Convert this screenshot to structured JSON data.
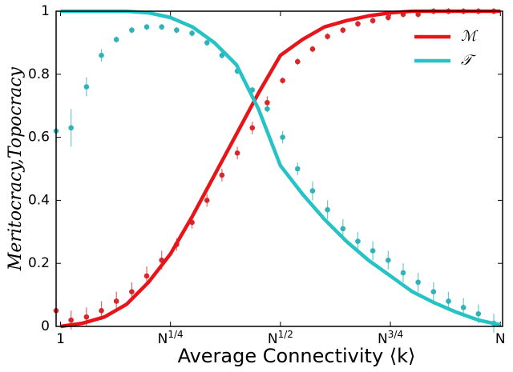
{
  "chart_data": {
    "type": "line",
    "xlabel": "Average Connectivity ⟨k⟩",
    "ylabel": "Meritocracy,Topocracy",
    "xlim": [
      -0.01,
      1.005
    ],
    "ylim": [
      0,
      1
    ],
    "xticks": [
      {
        "value": 0,
        "label": "1"
      },
      {
        "value": 0.25,
        "label": "N",
        "sup": "1/4"
      },
      {
        "value": 0.5,
        "label": "N",
        "sup": "1/2"
      },
      {
        "value": 0.75,
        "label": "N",
        "sup": "3/4"
      },
      {
        "value": 1,
        "label": "N"
      }
    ],
    "yticks": [
      0,
      0.2,
      0.4,
      0.6,
      0.8,
      1
    ],
    "legend": "upper right",
    "line_x": [
      0,
      0.05,
      0.1,
      0.15,
      0.2,
      0.25,
      0.3,
      0.35,
      0.4,
      0.45,
      0.5,
      0.55,
      0.6,
      0.65,
      0.7,
      0.75,
      0.8,
      0.85,
      0.9,
      0.95,
      1
    ],
    "series": [
      {
        "name": "ℳ",
        "color": "#e8141a",
        "values": [
          0,
          0.01,
          0.03,
          0.07,
          0.14,
          0.23,
          0.35,
          0.48,
          0.61,
          0.74,
          0.86,
          0.91,
          0.95,
          0.97,
          0.985,
          0.995,
          1,
          1,
          1,
          1,
          1
        ]
      },
      {
        "name": "𝒯",
        "color": "#26c3c6",
        "values": [
          1,
          1,
          1,
          1,
          0.995,
          0.98,
          0.95,
          0.9,
          0.83,
          0.69,
          0.51,
          0.42,
          0.34,
          0.27,
          0.21,
          0.16,
          0.11,
          0.075,
          0.045,
          0.02,
          0.005
        ]
      }
    ],
    "points_x": [
      -0.01,
      0.024,
      0.059,
      0.093,
      0.127,
      0.162,
      0.196,
      0.23,
      0.264,
      0.299,
      0.333,
      0.367,
      0.402,
      0.436,
      0.47,
      0.505,
      0.539,
      0.573,
      0.607,
      0.642,
      0.676,
      0.71,
      0.745,
      0.779,
      0.813,
      0.848,
      0.882,
      0.916,
      0.95,
      0.985
    ],
    "points": [
      {
        "color": "#d8262a",
        "values": [
          0.05,
          0.02,
          0.03,
          0.05,
          0.08,
          0.11,
          0.16,
          0.21,
          0.26,
          0.33,
          0.4,
          0.48,
          0.55,
          0.63,
          0.71,
          0.78,
          0.84,
          0.88,
          0.92,
          0.94,
          0.96,
          0.97,
          0.98,
          0.99,
          0.99,
          1,
          1,
          1,
          1,
          1
        ],
        "errors": [
          0.03,
          0.03,
          0.03,
          0.03,
          0.03,
          0.03,
          0.03,
          0.03,
          0.02,
          0.02,
          0.02,
          0.02,
          0.02,
          0.02,
          0.02,
          0.01,
          0.01,
          0.01,
          0.01,
          0.01,
          0.01,
          0.01,
          0.01,
          0.01,
          0.01,
          0.01,
          0.01,
          0.01,
          0.01,
          0.01
        ]
      },
      {
        "color": "#2fb3b8",
        "values": [
          0.62,
          0.63,
          0.76,
          0.86,
          0.91,
          0.94,
          0.95,
          0.95,
          0.94,
          0.93,
          0.9,
          0.86,
          0.81,
          0.75,
          0.69,
          0.6,
          0.5,
          0.43,
          0.37,
          0.31,
          0.27,
          0.24,
          0.21,
          0.17,
          0.14,
          0.11,
          0.08,
          0.06,
          0.04,
          0.01
        ],
        "errors": [
          0.04,
          0.06,
          0.03,
          0.02,
          0.01,
          0.01,
          0.01,
          0.01,
          0.01,
          0.01,
          0.01,
          0.01,
          0.01,
          0.01,
          0.01,
          0.02,
          0.02,
          0.03,
          0.03,
          0.03,
          0.03,
          0.03,
          0.03,
          0.03,
          0.03,
          0.03,
          0.03,
          0.03,
          0.03,
          0.03
        ]
      }
    ]
  }
}
